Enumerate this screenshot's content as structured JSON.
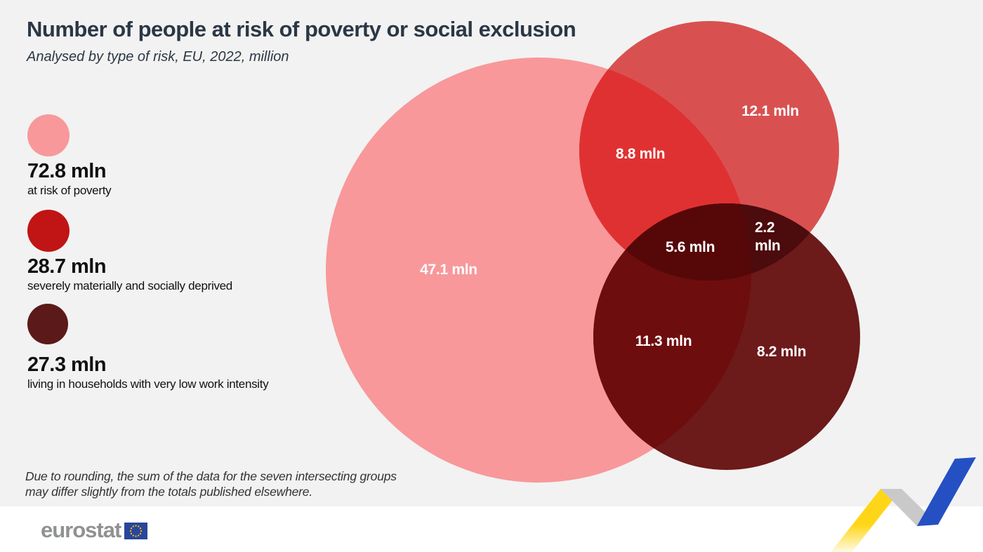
{
  "page": {
    "background": "#f2f2f2",
    "footer_background": "#ffffff"
  },
  "header": {
    "title": "Number of people at risk of poverty or social exclusion",
    "subtitle": "Analysed by type of risk, EU, 2022, million"
  },
  "legend": {
    "items": [
      {
        "value": "72.8 mln",
        "label": "at risk of poverty",
        "color": "#f8989a"
      },
      {
        "value": "28.7 mln",
        "label": "severely materially and socially deprived",
        "color": "#c11414"
      },
      {
        "value": "27.3 mln",
        "label": "living in households with very low work intensity",
        "color": "#5c1919"
      }
    ]
  },
  "venn": {
    "colors": {
      "poverty": "#f8989a",
      "deprived": "#d85150",
      "low_work": "#6c1a1a",
      "poverty_deprived": "#e03132",
      "poverty_low_work": "#6e0d0e",
      "deprived_low_work": "#4c0b0c",
      "all_three": "#560809"
    },
    "labels": {
      "poverty_only": "47.1 mln",
      "deprived_only": "12.1 mln",
      "low_work_only": "8.2 mln",
      "poverty_deprived": "8.8 mln",
      "poverty_low_work": "11.3 mln",
      "deprived_low_work_value": "2.2",
      "deprived_low_work_unit": "mln",
      "all_three": "5.6 mln"
    }
  },
  "footnote": {
    "line1": "Due to rounding, the sum of the data for the seven intersecting groups",
    "line2": "may differ slightly from the totals published elsewhere."
  },
  "footer": {
    "logo": "eurostat",
    "flag_blue": "#29469b",
    "flag_star": "#ffcc00"
  },
  "decoration": {
    "yellow": "#ffd617",
    "gray": "#c9c9c9",
    "blue": "#2450c4"
  },
  "chart_data": {
    "type": "venn",
    "title": "Number of people at risk of poverty or social exclusion",
    "subtitle": "Analysed by type of risk, EU, 2022, million",
    "unit": "mln",
    "sets": [
      {
        "name": "at risk of poverty",
        "total": 72.8,
        "color": "#f8989a"
      },
      {
        "name": "severely materially and socially deprived",
        "total": 28.7,
        "color": "#c11414"
      },
      {
        "name": "living in households with very low work intensity",
        "total": 27.3,
        "color": "#5c1919"
      }
    ],
    "regions": [
      {
        "sets": [
          "at risk of poverty"
        ],
        "value": 47.1
      },
      {
        "sets": [
          "severely materially and socially deprived"
        ],
        "value": 12.1
      },
      {
        "sets": [
          "living in households with very low work intensity"
        ],
        "value": 8.2
      },
      {
        "sets": [
          "at risk of poverty",
          "severely materially and socially deprived"
        ],
        "value": 8.8
      },
      {
        "sets": [
          "at risk of poverty",
          "living in households with very low work intensity"
        ],
        "value": 11.3
      },
      {
        "sets": [
          "severely materially and socially deprived",
          "living in households with very low work intensity"
        ],
        "value": 2.2
      },
      {
        "sets": [
          "at risk of poverty",
          "severely materially and socially deprived",
          "living in households with very low work intensity"
        ],
        "value": 5.6
      }
    ],
    "footnote": "Due to rounding, the sum of the data for the seven intersecting groups may differ slightly from the totals published elsewhere.",
    "legend_position": "left"
  }
}
